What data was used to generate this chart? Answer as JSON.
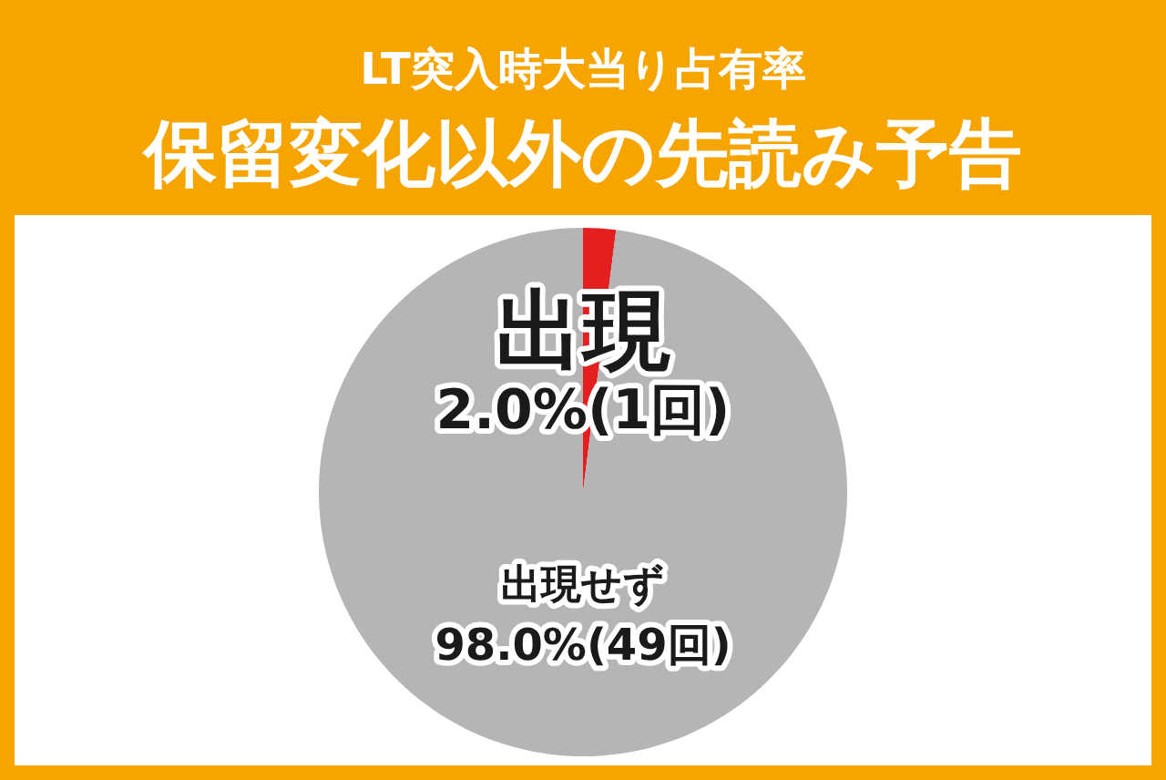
{
  "chart_data": {
    "type": "pie",
    "title": "LT突入時大当り占有率",
    "subtitle": "保留変化以外の先読み予告",
    "categories": [
      "出現",
      "出現せず"
    ],
    "values": [
      2.0,
      98.0
    ],
    "colors": [
      "#e41f1f",
      "#b5b5b6"
    ],
    "value_labels": [
      "2.0%(1回)",
      "98.0%(49回)"
    ]
  }
}
